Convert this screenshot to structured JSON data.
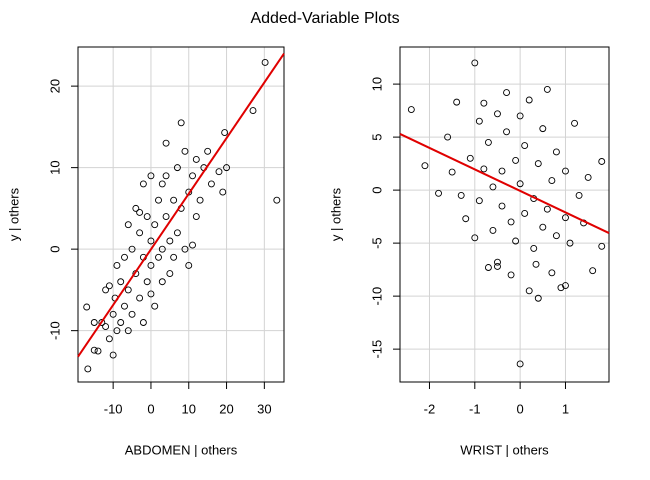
{
  "title": "Added-Variable Plots",
  "chart_data": [
    {
      "type": "scatter",
      "xlabel": "ABDOMEN | others",
      "ylabel": "y  | others",
      "xlim": [
        -19.3,
        35.2
      ],
      "ylim": [
        -16.3,
        24.8
      ],
      "xticks": [
        -10,
        0,
        10,
        20,
        30
      ],
      "yticks": [
        -10,
        0,
        10,
        20
      ],
      "grid": true,
      "point_color": "#000000",
      "x": [
        -16.7,
        -17,
        -15,
        -14,
        -13,
        -12,
        -11,
        -11,
        -10,
        -10,
        -9.5,
        -9,
        -9,
        -8,
        -8,
        -7,
        -7,
        -6,
        -6,
        -5,
        -5,
        -4,
        -4,
        -3,
        -3,
        -2,
        -2,
        -1,
        -1,
        0,
        0,
        0,
        1,
        1,
        2,
        2,
        3,
        3,
        4,
        4,
        5,
        5,
        6,
        7,
        7,
        8,
        8,
        9,
        9,
        10,
        10,
        11,
        12,
        12,
        13,
        14,
        15,
        16,
        18,
        19,
        19.5,
        20,
        27,
        30.2,
        33.3,
        -12,
        -6,
        0,
        3,
        -3,
        6,
        11,
        -15,
        4,
        -2
      ],
      "values": [
        -14.7,
        -7.1,
        -12.4,
        -12.5,
        -9,
        -5,
        -11,
        -4.5,
        -8,
        -13,
        -6,
        -10,
        -2,
        -4,
        -9,
        -7,
        -1,
        -5,
        3,
        -8,
        0,
        -3,
        5,
        -6,
        2,
        -1,
        8,
        -4,
        4,
        -2,
        1,
        9,
        -7,
        3,
        -1,
        6,
        0,
        -4,
        4,
        9,
        1,
        -3,
        6,
        2,
        10,
        15.5,
        5,
        0,
        12,
        7,
        -2,
        9,
        11,
        4,
        6,
        10,
        12,
        8,
        9.5,
        7,
        14.3,
        10,
        17,
        22.9,
        6,
        -9.5,
        -10,
        -5.5,
        8,
        4.5,
        -1,
        0.5,
        -9,
        13,
        -9
      ],
      "fit": {
        "color": "#e00000",
        "x": [
          -19.3,
          35.2
        ],
        "values": [
          -13.2,
          24.0
        ]
      }
    },
    {
      "type": "scatter",
      "xlabel": "WRIST | others",
      "ylabel": "y  | others",
      "xlim": [
        -2.65,
        1.96
      ],
      "ylim": [
        -18.1,
        13.5
      ],
      "xticks": [
        -2,
        -1,
        0,
        1
      ],
      "yticks": [
        -15,
        -10,
        -5,
        0,
        5,
        10
      ],
      "grid": true,
      "point_color": "#000000",
      "x": [
        -2.4,
        -2.1,
        -1.6,
        -1.5,
        -1.4,
        -1.3,
        -1.2,
        -1.1,
        -1.0,
        -1.0,
        -0.9,
        -0.9,
        -0.8,
        -0.8,
        -0.7,
        -0.7,
        -0.6,
        -0.6,
        -0.5,
        -0.5,
        -0.4,
        -0.4,
        -0.3,
        -0.3,
        -0.2,
        -0.2,
        -0.1,
        -0.1,
        0.0,
        0.0,
        0.0,
        0.1,
        0.1,
        0.2,
        0.2,
        0.3,
        0.3,
        0.4,
        0.4,
        0.5,
        0.5,
        0.6,
        0.6,
        0.7,
        0.7,
        0.8,
        0.8,
        0.9,
        1.0,
        1.0,
        1.1,
        1.2,
        1.3,
        1.4,
        1.5,
        1.6,
        1.8,
        1.8,
        -1.8,
        0.35,
        -0.5,
        1.0
      ],
      "values": [
        7.6,
        2.3,
        5.0,
        1.7,
        8.3,
        -0.5,
        -2.7,
        3.0,
        12,
        -4.5,
        6.5,
        -1.0,
        8.2,
        2.0,
        -7.3,
        4.5,
        0.3,
        -3.8,
        7.2,
        -6.8,
        1.8,
        -1.5,
        5.5,
        9.2,
        -3.0,
        -8.0,
        2.8,
        -4.8,
        -16.4,
        7.0,
        0.6,
        -2.2,
        4.2,
        -9.5,
        8.5,
        -0.8,
        -5.5,
        2.5,
        -10.2,
        -3.5,
        5.8,
        9.5,
        -1.8,
        -7.8,
        0.9,
        -4.3,
        3.6,
        -9.2,
        -2.6,
        1.8,
        -5.0,
        6.3,
        -0.5,
        -3.1,
        1.2,
        -7.6,
        2.7,
        -5.3,
        -0.3,
        -7.0,
        -7.2,
        -9.0
      ],
      "fit": {
        "color": "#e00000",
        "x": [
          -2.65,
          1.96
        ],
        "values": [
          5.3,
          -4.05
        ]
      }
    }
  ]
}
